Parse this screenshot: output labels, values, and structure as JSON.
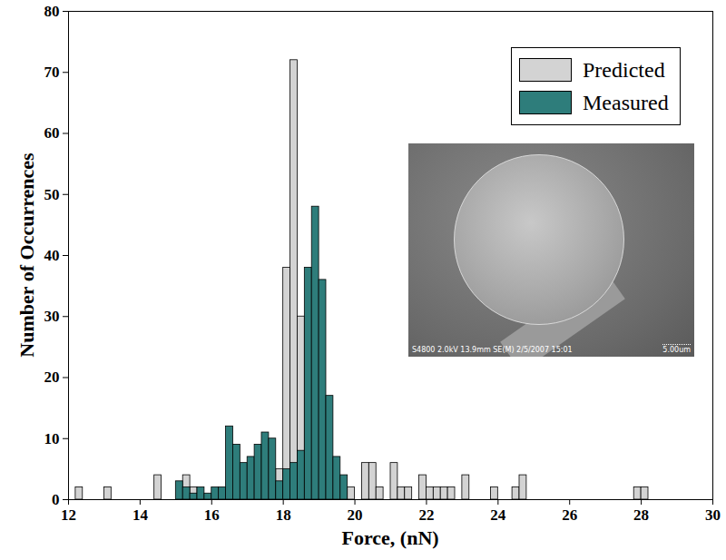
{
  "chart_data": {
    "type": "histogram",
    "xlabel": "Force, (nN)",
    "ylabel": "Number of Occurrences",
    "xlim": [
      12,
      30
    ],
    "ylim": [
      0,
      80
    ],
    "xticks": [
      12,
      14,
      16,
      18,
      20,
      22,
      24,
      26,
      28,
      30
    ],
    "yticks": [
      0,
      10,
      20,
      30,
      40,
      50,
      60,
      70,
      80
    ],
    "legend": "top-right",
    "annotations": [
      "S4800 2.0kV 13.9mm SE(M) 2/5/2007 15:01",
      "5.00um"
    ],
    "series": [
      {
        "name": "Predicted",
        "color": "#d3d3d3",
        "bins": [
          12.2,
          12.4,
          12.6,
          12.8,
          13.0,
          13.2,
          13.4,
          13.6,
          13.8,
          14.0,
          14.2,
          14.4,
          14.6,
          14.8,
          15.0,
          15.2,
          15.4,
          15.6,
          15.8,
          16.0,
          16.2,
          16.4,
          16.6,
          16.8,
          17.0,
          17.2,
          17.4,
          17.6,
          17.8,
          18.0,
          18.2,
          18.4,
          18.6,
          18.8,
          19.0,
          19.2,
          19.4,
          19.6,
          19.8,
          20.0,
          20.2,
          20.4,
          20.6,
          20.8,
          21.0,
          21.2,
          21.4,
          21.6,
          21.8,
          22.0,
          22.2,
          22.4,
          22.6,
          22.8,
          23.0,
          23.2,
          23.4,
          23.6,
          23.8,
          24.0,
          24.2,
          24.4,
          24.6,
          24.8,
          25.0,
          25.2,
          25.4,
          25.6,
          25.8,
          26.0,
          26.2,
          26.4,
          26.6,
          26.8,
          27.0,
          27.2,
          27.4,
          27.6,
          27.8,
          28.0,
          28.2
        ],
        "values": [
          2,
          0,
          0,
          0,
          2,
          0,
          0,
          0,
          0,
          0,
          0,
          4,
          0,
          0,
          0,
          4,
          2,
          0,
          0,
          0,
          0,
          0,
          0,
          0,
          0,
          0,
          0,
          0,
          5,
          38,
          72,
          30,
          0,
          0,
          0,
          0,
          0,
          0,
          2,
          0,
          6,
          6,
          2,
          0,
          6,
          2,
          2,
          0,
          4,
          2,
          2,
          2,
          2,
          0,
          4,
          0,
          0,
          0,
          2,
          0,
          0,
          2,
          4,
          0,
          0,
          0,
          0,
          0,
          0,
          0,
          0,
          0,
          0,
          0,
          0,
          0,
          0,
          0,
          2,
          2
        ]
      },
      {
        "name": "Measured",
        "color": "#2e7d7b",
        "bins": [
          15.0,
          15.2,
          15.4,
          15.6,
          15.8,
          16.0,
          16.2,
          16.4,
          16.6,
          16.8,
          17.0,
          17.2,
          17.4,
          17.6,
          17.8,
          18.0,
          18.2,
          18.4,
          18.6,
          18.8,
          19.0,
          19.2,
          19.4,
          19.6,
          19.8
        ],
        "values": [
          3,
          2,
          1,
          2,
          1,
          2,
          2,
          12,
          9,
          6,
          7,
          9,
          11,
          10,
          3,
          5,
          6,
          8,
          38,
          48,
          36,
          17,
          7,
          4
        ]
      }
    ]
  }
}
